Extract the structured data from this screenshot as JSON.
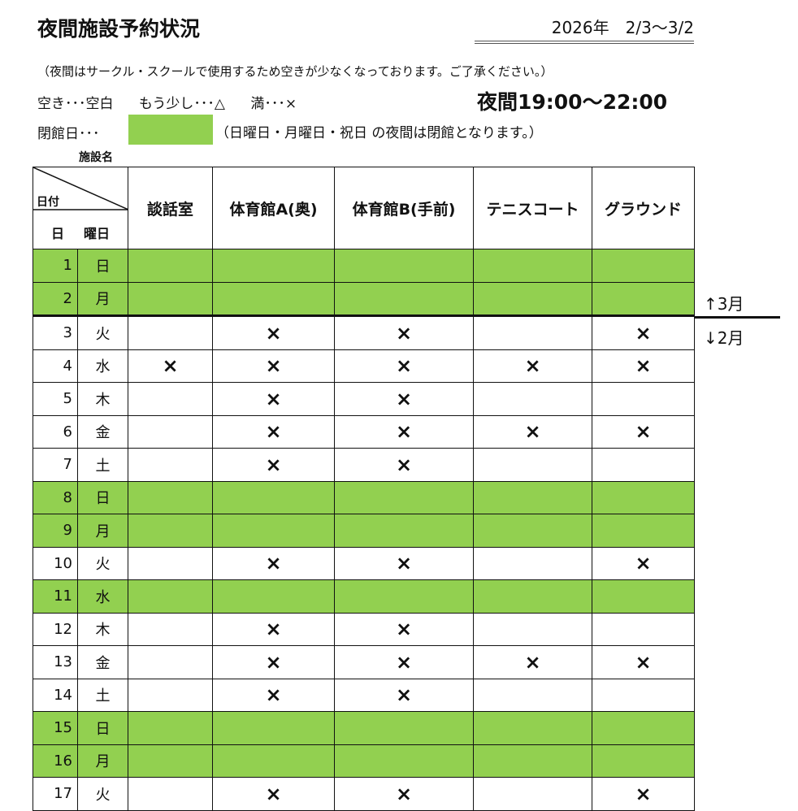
{
  "header": {
    "title": "夜間施設予約状況",
    "period": "2026年　2/3〜3/2"
  },
  "note": "（夜間はサークル・スクールで使用するため空きが少なくなっております。ご了承ください。）",
  "legend": {
    "empty": "空き･･･空白",
    "few": "もう少し･･･△",
    "full": "満･･･×"
  },
  "hours": "夜間19:00〜22:00",
  "closed": {
    "label": "閉館日･･･",
    "note": "（日曜日・月曜日・祝日 の夜間は閉館となります。）"
  },
  "facility_label": "施設名",
  "corner": {
    "date": "日付",
    "day": "日",
    "weekday": "曜日"
  },
  "columns": [
    "談話室",
    "体育館A(奥)",
    "体育館B(手前)",
    "テニスコート",
    "グラウンド"
  ],
  "mark": "×",
  "colors": {
    "closed": "#92d050"
  },
  "rows": [
    {
      "day": "1",
      "dow": "日",
      "closed": true,
      "marks": [
        false,
        false,
        false,
        false,
        false
      ]
    },
    {
      "day": "2",
      "dow": "月",
      "closed": true,
      "marks": [
        false,
        false,
        false,
        false,
        false
      ]
    },
    {
      "day": "3",
      "dow": "火",
      "closed": false,
      "marks": [
        false,
        true,
        true,
        false,
        true
      ]
    },
    {
      "day": "4",
      "dow": "水",
      "closed": false,
      "marks": [
        true,
        true,
        true,
        true,
        true
      ]
    },
    {
      "day": "5",
      "dow": "木",
      "closed": false,
      "marks": [
        false,
        true,
        true,
        false,
        false
      ]
    },
    {
      "day": "6",
      "dow": "金",
      "closed": false,
      "marks": [
        false,
        true,
        true,
        true,
        true
      ]
    },
    {
      "day": "7",
      "dow": "土",
      "closed": false,
      "marks": [
        false,
        true,
        true,
        false,
        false
      ]
    },
    {
      "day": "8",
      "dow": "日",
      "closed": true,
      "marks": [
        false,
        false,
        false,
        false,
        false
      ]
    },
    {
      "day": "9",
      "dow": "月",
      "closed": true,
      "marks": [
        false,
        false,
        false,
        false,
        false
      ]
    },
    {
      "day": "10",
      "dow": "火",
      "closed": false,
      "marks": [
        false,
        true,
        true,
        false,
        true
      ]
    },
    {
      "day": "11",
      "dow": "水",
      "closed": true,
      "marks": [
        false,
        false,
        false,
        false,
        false
      ]
    },
    {
      "day": "12",
      "dow": "木",
      "closed": false,
      "marks": [
        false,
        true,
        true,
        false,
        false
      ]
    },
    {
      "day": "13",
      "dow": "金",
      "closed": false,
      "marks": [
        false,
        true,
        true,
        true,
        true
      ]
    },
    {
      "day": "14",
      "dow": "土",
      "closed": false,
      "marks": [
        false,
        true,
        true,
        false,
        false
      ]
    },
    {
      "day": "15",
      "dow": "日",
      "closed": true,
      "marks": [
        false,
        false,
        false,
        false,
        false
      ]
    },
    {
      "day": "16",
      "dow": "月",
      "closed": true,
      "marks": [
        false,
        false,
        false,
        false,
        false
      ]
    },
    {
      "day": "17",
      "dow": "火",
      "closed": false,
      "marks": [
        false,
        true,
        true,
        false,
        true
      ]
    }
  ],
  "month_markers": {
    "up": "↑3月",
    "down": "↓2月"
  }
}
